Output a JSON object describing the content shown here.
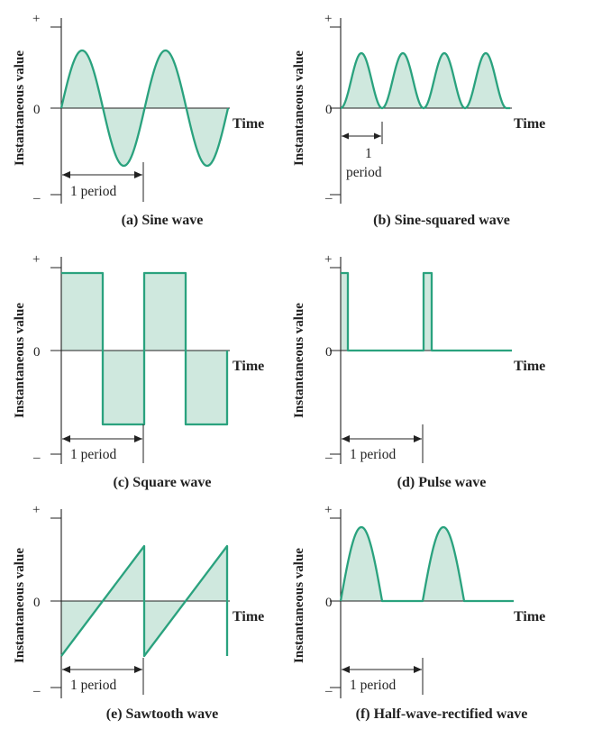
{
  "wave_color": "#2aa27e",
  "fill_color": "#cfe8de",
  "axis_labels": {
    "y": "Instantaneous value",
    "x": "Time",
    "plus": "+",
    "minus": "–",
    "zero": "0"
  },
  "period_label": "1 period",
  "period_label_split": [
    "1",
    "period"
  ],
  "panels": [
    {
      "id": "a",
      "caption": "(a) Sine wave"
    },
    {
      "id": "b",
      "caption": "(b) Sine-squared wave"
    },
    {
      "id": "c",
      "caption": "(c) Square wave"
    },
    {
      "id": "d",
      "caption": "(d) Pulse wave"
    },
    {
      "id": "e",
      "caption": "(e) Sawtooth wave"
    },
    {
      "id": "f",
      "caption": "(f) Half-wave-rectified wave"
    }
  ]
}
